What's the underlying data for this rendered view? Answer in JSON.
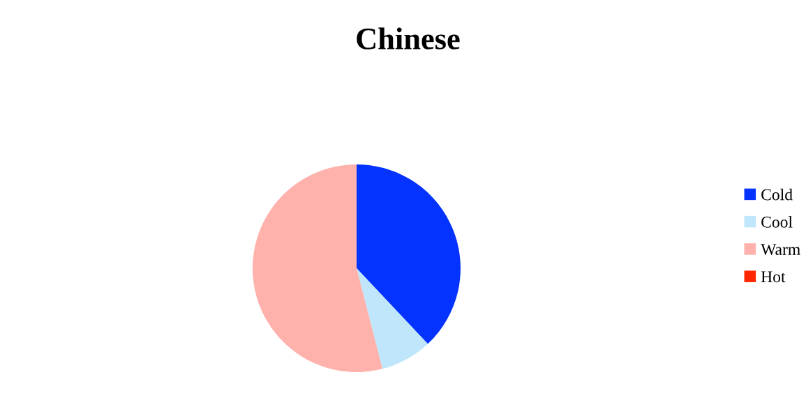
{
  "chart_data": {
    "type": "pie",
    "title": "Chinese",
    "categories": [
      "Cold",
      "Cool",
      "Warm",
      "Hot"
    ],
    "values": [
      38,
      8,
      54,
      0
    ],
    "colors": [
      "#0433ff",
      "#bfe6fa",
      "#ffb1ac",
      "#ff2600"
    ],
    "legend": "right"
  }
}
